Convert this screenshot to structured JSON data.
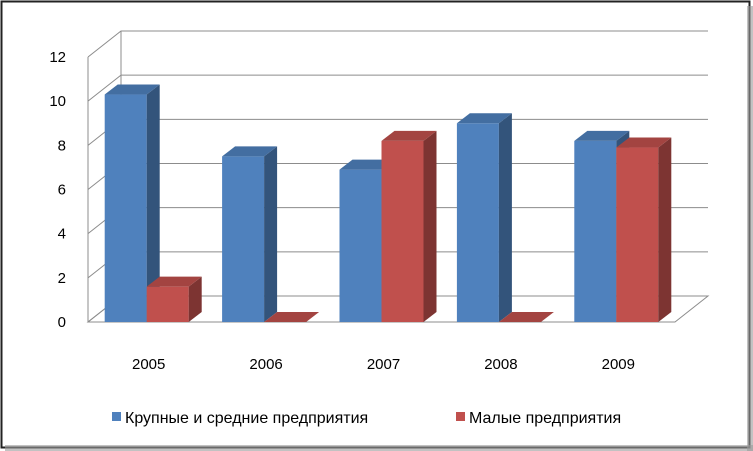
{
  "chart_data": {
    "type": "bar",
    "title": "",
    "xlabel": "",
    "ylabel": "",
    "categories": [
      "2005",
      "2006",
      "2007",
      "2008",
      "2009"
    ],
    "series": [
      {
        "name": "Крупные и средние предприятия",
        "values": [
          10.3,
          7.5,
          6.9,
          9.0,
          8.2
        ],
        "color": "#4f81bd"
      },
      {
        "name": "Малые предприятия",
        "values": [
          1.6,
          0,
          8.2,
          0,
          7.9
        ],
        "color": "#c0504d"
      }
    ],
    "ylim": [
      0,
      12
    ],
    "yticks": [
      "0",
      "2",
      "4",
      "6",
      "8",
      "10",
      "12"
    ],
    "grid": true,
    "style": "3d-clustered",
    "legend_position": "bottom"
  }
}
